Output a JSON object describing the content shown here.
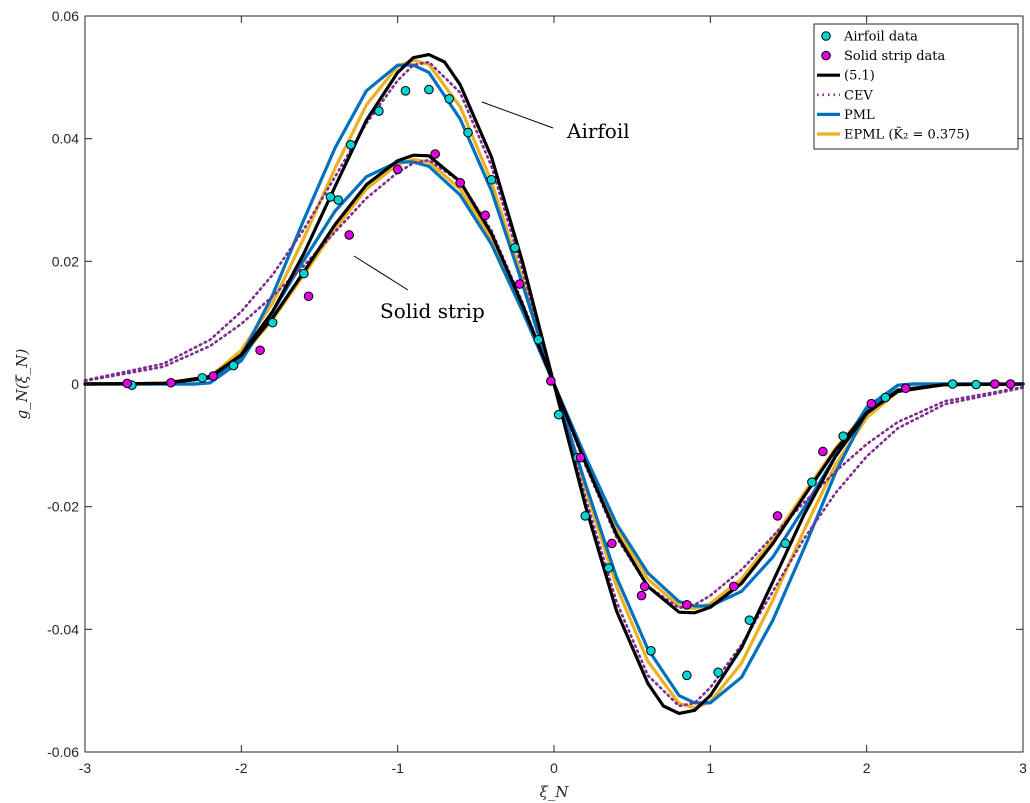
{
  "chart_data": {
    "type": "line",
    "title": "",
    "xlabel": "ξ_N",
    "ylabel": "g_N(ξ_N)",
    "xlim": [
      -3,
      3
    ],
    "ylim": [
      -0.06,
      0.06
    ],
    "grid": false,
    "legend_position": "top-right",
    "x_ticks": [
      -3,
      -2,
      -1,
      0,
      1,
      2,
      3
    ],
    "x_tick_labels": [
      "-3",
      "-2",
      "-1",
      "0",
      "1",
      "2",
      "3"
    ],
    "y_ticks": [
      -0.06,
      -0.04,
      -0.02,
      0,
      0.02,
      0.04,
      0.06
    ],
    "y_tick_labels": [
      "-0.06",
      "-0.04",
      "-0.02",
      "0",
      "0.02",
      "0.04",
      "0.06"
    ],
    "annotations": [
      {
        "text": "Airfoil",
        "points_to": [
          -0.47,
          0.0455
        ]
      },
      {
        "text": "Solid strip",
        "points_to": [
          -1.27,
          0.019
        ]
      }
    ],
    "scatter_series": [
      {
        "name": "Airfoil data",
        "color": "#00d4d4",
        "x": [
          -2.7,
          -2.25,
          -2.05,
          -1.8,
          -1.6,
          -1.43,
          -1.38,
          -1.3,
          -1.12,
          -0.95,
          -0.8,
          -0.67,
          -0.55,
          -0.4,
          -0.25,
          -0.1,
          0.03,
          0.15,
          0.2,
          0.35,
          0.62,
          0.85,
          1.05,
          1.25,
          1.48,
          1.65,
          1.85,
          2.12,
          2.55,
          2.7
        ],
        "y": [
          -0.0002,
          0.001,
          0.003,
          0.01,
          0.018,
          0.0305,
          0.03,
          0.039,
          0.0445,
          0.0478,
          0.048,
          0.0465,
          0.041,
          0.0333,
          0.0222,
          0.0072,
          -0.005,
          -0.012,
          -0.0215,
          -0.03,
          -0.0435,
          -0.0475,
          -0.047,
          -0.0385,
          -0.026,
          -0.016,
          -0.0085,
          -0.0022,
          0,
          -0.0001
        ]
      },
      {
        "name": "Solid strip data",
        "color": "#e000e0",
        "x": [
          -2.73,
          -2.45,
          -2.18,
          -1.88,
          -1.57,
          -1.31,
          -1.0,
          -0.76,
          -0.6,
          -0.44,
          -0.22,
          -0.02,
          0.17,
          0.37,
          0.58,
          0.56,
          0.85,
          1.15,
          1.43,
          1.72,
          2.03,
          2.25,
          2.82,
          2.92
        ],
        "y": [
          0.0001,
          0.0002,
          0.0013,
          0.0055,
          0.0143,
          0.0243,
          0.035,
          0.0375,
          0.0328,
          0.0275,
          0.0163,
          0.0005,
          -0.012,
          -0.026,
          -0.033,
          -0.0345,
          -0.036,
          -0.033,
          -0.0215,
          -0.011,
          -0.0032,
          -0.0007,
          0,
          0
        ]
      }
    ],
    "series": [
      {
        "name": "(5.1)",
        "color": "#000000",
        "style": "solid"
      },
      {
        "name": "CEV",
        "color": "#7e2f8e",
        "style": "dotted"
      },
      {
        "name": "PML",
        "color": "#0072bd",
        "style": "solid"
      },
      {
        "name": "EPML (K̃₂ = 0.375)",
        "color": "#edb120",
        "style": "solid"
      }
    ],
    "curves": [
      {
        "series": "EPML (K̃₂ = 0.375)",
        "group": "airfoil",
        "color": "#edb120",
        "style": "solid",
        "x": [
          -3,
          -2.5,
          -2.2,
          -2.0,
          -1.8,
          -1.6,
          -1.4,
          -1.2,
          -1.0,
          -0.9,
          -0.8,
          -0.6,
          -0.4,
          -0.2,
          0,
          0.2,
          0.4,
          0.6,
          0.8,
          0.9,
          1.0,
          1.2,
          1.4,
          1.6,
          1.8,
          2.0,
          2.2,
          2.5,
          3
        ],
        "y": [
          0,
          0.0001,
          0.0012,
          0.0055,
          0.0132,
          0.0238,
          0.0352,
          0.0455,
          0.0518,
          0.0528,
          0.0521,
          0.0452,
          0.033,
          0.017,
          0,
          -0.017,
          -0.033,
          -0.0452,
          -0.0521,
          -0.0528,
          -0.0518,
          -0.0455,
          -0.0352,
          -0.0238,
          -0.0132,
          -0.0055,
          -0.0012,
          -0.0001,
          0
        ]
      },
      {
        "series": "EPML (K̃₂ = 0.375)",
        "group": "strip",
        "color": "#edb120",
        "style": "solid",
        "x": [
          -3,
          -2.5,
          -2.2,
          -2.0,
          -1.8,
          -1.6,
          -1.4,
          -1.2,
          -1.0,
          -0.9,
          -0.8,
          -0.6,
          -0.4,
          -0.2,
          0,
          0.2,
          0.4,
          0.6,
          0.8,
          0.9,
          1.0,
          1.2,
          1.4,
          1.6,
          1.8,
          2.0,
          2.2,
          2.5,
          3
        ],
        "y": [
          0,
          0.0001,
          0.0012,
          0.0045,
          0.0105,
          0.0178,
          0.0253,
          0.0318,
          0.0358,
          0.0366,
          0.0362,
          0.0318,
          0.0237,
          0.0123,
          0,
          -0.0123,
          -0.0237,
          -0.0318,
          -0.0362,
          -0.0366,
          -0.0358,
          -0.0318,
          -0.0253,
          -0.0178,
          -0.0105,
          -0.0045,
          -0.0012,
          -0.0001,
          0
        ]
      },
      {
        "series": "PML",
        "group": "airfoil",
        "color": "#0072bd",
        "style": "solid",
        "x": [
          -3,
          -2.5,
          -2.3,
          -2.2,
          -2.0,
          -1.8,
          -1.6,
          -1.4,
          -1.2,
          -1.0,
          -0.9,
          -0.8,
          -0.6,
          -0.4,
          -0.2,
          0,
          0.2,
          0.4,
          0.6,
          0.8,
          0.9,
          1.0,
          1.2,
          1.4,
          1.6,
          1.8,
          2.0,
          2.2,
          2.3,
          2.5,
          3
        ],
        "y": [
          0,
          0,
          0,
          0.0002,
          0.0045,
          0.0145,
          0.0268,
          0.0385,
          0.0478,
          0.052,
          0.052,
          0.0508,
          0.0432,
          0.0315,
          0.0162,
          0,
          -0.0162,
          -0.0315,
          -0.0432,
          -0.0508,
          -0.052,
          -0.052,
          -0.0478,
          -0.0385,
          -0.0268,
          -0.0145,
          -0.0045,
          -0.0002,
          0,
          0,
          0
        ]
      },
      {
        "series": "PML",
        "group": "strip",
        "color": "#0072bd",
        "style": "solid",
        "x": [
          -3,
          -2.5,
          -2.3,
          -2.2,
          -2.0,
          -1.8,
          -1.6,
          -1.4,
          -1.2,
          -1.0,
          -0.9,
          -0.8,
          -0.6,
          -0.4,
          -0.2,
          0,
          0.2,
          0.4,
          0.6,
          0.8,
          0.9,
          1.0,
          1.2,
          1.4,
          1.6,
          1.8,
          2.0,
          2.2,
          2.3,
          2.5,
          3
        ],
        "y": [
          0,
          0,
          0,
          0.0002,
          0.0038,
          0.0118,
          0.0202,
          0.0282,
          0.0338,
          0.0362,
          0.0362,
          0.0355,
          0.0308,
          0.0228,
          0.0118,
          0,
          -0.0118,
          -0.0228,
          -0.0308,
          -0.0355,
          -0.0362,
          -0.0362,
          -0.0338,
          -0.0282,
          -0.0202,
          -0.0118,
          -0.0038,
          -0.0002,
          0,
          0,
          0
        ]
      },
      {
        "series": "CEV",
        "group": "airfoil",
        "color": "#7e2f8e",
        "style": "dotted",
        "x": [
          -3,
          -2.5,
          -2.2,
          -2.0,
          -1.8,
          -1.6,
          -1.4,
          -1.2,
          -1.0,
          -0.9,
          -0.8,
          -0.6,
          -0.4,
          -0.2,
          0,
          0.2,
          0.4,
          0.6,
          0.8,
          0.9,
          1.0,
          1.2,
          1.4,
          1.6,
          1.8,
          2.0,
          2.2,
          2.5,
          3
        ],
        "y": [
          0.0006,
          0.0033,
          0.0072,
          0.0118,
          0.0178,
          0.0252,
          0.0338,
          0.0425,
          0.0495,
          0.052,
          0.0525,
          0.0475,
          0.0355,
          0.0185,
          0,
          -0.0185,
          -0.0355,
          -0.0475,
          -0.0525,
          -0.052,
          -0.0495,
          -0.0425,
          -0.0338,
          -0.0252,
          -0.0178,
          -0.0118,
          -0.0072,
          -0.0033,
          -0.0006
        ]
      },
      {
        "series": "CEV",
        "group": "strip",
        "color": "#7e2f8e",
        "style": "dotted",
        "x": [
          -3,
          -2.5,
          -2.2,
          -2.0,
          -1.8,
          -1.6,
          -1.4,
          -1.2,
          -1.0,
          -0.9,
          -0.8,
          -0.6,
          -0.4,
          -0.2,
          0,
          0.2,
          0.4,
          0.6,
          0.8,
          0.9,
          1.0,
          1.2,
          1.4,
          1.6,
          1.8,
          2.0,
          2.2,
          2.5,
          3
        ],
        "y": [
          0.0005,
          0.0028,
          0.0062,
          0.0098,
          0.0143,
          0.0193,
          0.0248,
          0.0303,
          0.0345,
          0.036,
          0.0365,
          0.033,
          0.025,
          0.0132,
          0,
          -0.0132,
          -0.025,
          -0.033,
          -0.0365,
          -0.036,
          -0.0345,
          -0.0303,
          -0.0248,
          -0.0193,
          -0.0143,
          -0.0098,
          -0.0062,
          -0.0028,
          -0.0005
        ]
      },
      {
        "series": "(5.1)",
        "group": "airfoil",
        "color": "#000000",
        "style": "solid",
        "x": [
          -3,
          -2.5,
          -2.2,
          -2.0,
          -1.8,
          -1.6,
          -1.4,
          -1.2,
          -1.0,
          -0.9,
          -0.8,
          -0.7,
          -0.6,
          -0.4,
          -0.2,
          0,
          0.2,
          0.4,
          0.6,
          0.7,
          0.8,
          0.9,
          1.0,
          1.2,
          1.4,
          1.6,
          1.8,
          2.0,
          2.2,
          2.5,
          3
        ],
        "y": [
          0,
          0.0001,
          0.001,
          0.0048,
          0.0118,
          0.0213,
          0.0322,
          0.043,
          0.0508,
          0.0532,
          0.0537,
          0.0525,
          0.0488,
          0.037,
          0.0198,
          0,
          -0.0198,
          -0.037,
          -0.0488,
          -0.0525,
          -0.0537,
          -0.0532,
          -0.0508,
          -0.043,
          -0.0322,
          -0.0213,
          -0.0118,
          -0.0048,
          -0.001,
          -0.0001,
          0
        ]
      },
      {
        "series": "(5.1)",
        "group": "strip",
        "color": "#000000",
        "style": "solid",
        "x": [
          -3,
          -2.5,
          -2.2,
          -2.0,
          -1.8,
          -1.6,
          -1.4,
          -1.2,
          -1.0,
          -0.9,
          -0.8,
          -0.6,
          -0.4,
          -0.2,
          0,
          0.2,
          0.4,
          0.6,
          0.8,
          0.9,
          1.0,
          1.2,
          1.4,
          1.6,
          1.8,
          2.0,
          2.2,
          2.5,
          3
        ],
        "y": [
          0,
          0.0001,
          0.0012,
          0.0047,
          0.0108,
          0.0183,
          0.026,
          0.0325,
          0.0364,
          0.0373,
          0.0372,
          0.033,
          0.0245,
          0.0128,
          0,
          -0.0128,
          -0.0245,
          -0.033,
          -0.0372,
          -0.0373,
          -0.0364,
          -0.0325,
          -0.026,
          -0.0183,
          -0.0108,
          -0.0047,
          -0.0012,
          -0.0001,
          0
        ]
      }
    ]
  },
  "legend": {
    "items": [
      {
        "label": "Airfoil data",
        "kind": "marker",
        "color": "#00d4d4"
      },
      {
        "label": "Solid strip data",
        "kind": "marker",
        "color": "#e000e0"
      },
      {
        "label": "(5.1)",
        "kind": "line",
        "color": "#000000",
        "style": "solid"
      },
      {
        "label": "CEV",
        "kind": "line",
        "color": "#7e2f8e",
        "style": "dotted"
      },
      {
        "label": "PML",
        "kind": "line",
        "color": "#0072bd",
        "style": "solid"
      },
      {
        "label": "EPML (K̃₂ = 0.375)",
        "kind": "line",
        "color": "#edb120",
        "style": "solid"
      }
    ]
  }
}
